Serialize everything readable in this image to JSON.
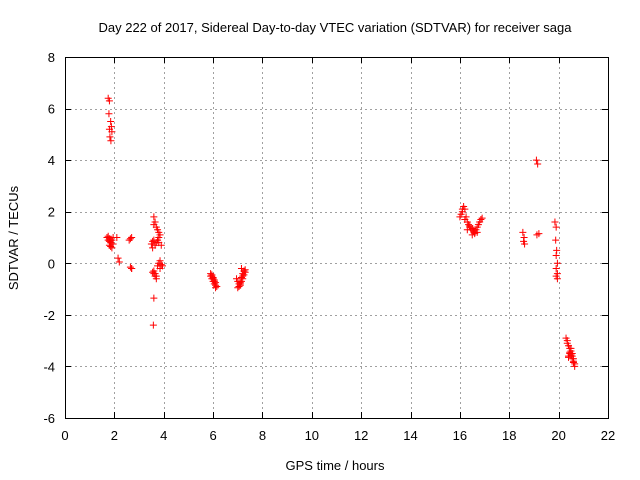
{
  "chart_data": {
    "type": "scatter",
    "title": "Day 222 of 2017, Sidereal Day-to-day VTEC variation (SDTVAR) for receiver saga",
    "xlabel": "GPS time / hours",
    "ylabel": "SDTVAR / TECUs",
    "xlim": [
      0,
      22
    ],
    "ylim": [
      -6,
      8
    ],
    "xticks": [
      0,
      2,
      4,
      6,
      8,
      10,
      12,
      14,
      16,
      18,
      20,
      22
    ],
    "yticks": [
      -6,
      -4,
      -2,
      0,
      2,
      4,
      6,
      8
    ],
    "grid": true,
    "marker": "plus",
    "color": "#ff0000",
    "series": [
      {
        "name": "SDTVAR",
        "x": [
          1.75,
          1.8,
          1.78,
          1.85,
          1.8,
          1.9,
          1.82,
          1.86,
          1.88,
          1.7,
          1.75,
          1.8,
          1.85,
          1.9,
          1.95,
          1.8,
          1.85,
          1.9,
          1.95,
          1.75,
          1.8,
          1.85,
          2.1,
          2.15,
          2.2,
          2.6,
          2.7,
          2.65,
          2.7,
          2.65,
          2.7,
          3.5,
          3.55,
          3.6,
          3.65,
          3.6,
          3.7,
          3.75,
          3.8,
          3.85,
          3.8,
          3.75,
          3.7,
          3.65,
          3.6,
          3.55,
          3.6,
          3.65,
          3.7,
          3.75,
          3.8,
          3.85,
          3.9,
          3.95,
          3.85,
          3.9,
          3.8,
          3.75,
          3.7,
          3.65,
          3.6,
          3.55,
          3.6,
          3.58,
          5.9,
          5.95,
          6.0,
          6.05,
          6.1,
          6.0,
          5.95,
          6.05,
          6.1,
          6.15,
          6.0,
          6.05,
          6.1,
          5.9,
          5.95,
          6.95,
          7.0,
          7.05,
          7.1,
          7.15,
          7.2,
          7.25,
          7.3,
          7.05,
          7.1,
          7.15,
          7.2,
          7.25,
          7.0,
          7.1,
          7.2,
          7.3,
          7.15,
          16.0,
          16.05,
          16.1,
          16.15,
          16.2,
          16.25,
          16.3,
          16.35,
          16.4,
          16.45,
          16.5,
          16.55,
          16.6,
          16.65,
          16.7,
          16.75,
          16.8,
          16.85,
          16.9,
          16.2,
          16.3,
          16.5,
          16.7,
          16.1,
          16.4,
          16.6,
          18.55,
          18.6,
          18.58,
          18.62,
          19.1,
          19.15,
          19.12,
          19.2,
          19.85,
          19.9,
          19.88,
          19.92,
          19.9,
          19.95,
          19.9,
          19.95,
          19.9,
          19.95,
          20.3,
          20.35,
          20.4,
          20.45,
          20.5,
          20.55,
          20.6,
          20.65,
          20.4,
          20.45,
          20.5,
          20.55,
          20.6,
          20.35,
          20.45,
          20.55,
          20.65,
          20.5,
          20.6,
          20.4
        ],
        "y": [
          6.4,
          6.3,
          5.8,
          5.5,
          5.2,
          5.1,
          4.9,
          4.75,
          5.3,
          1.0,
          0.9,
          0.85,
          0.8,
          0.9,
          1.0,
          0.7,
          0.65,
          0.6,
          0.75,
          1.05,
          0.95,
          0.9,
          1.0,
          0.2,
          0.05,
          0.9,
          1.0,
          0.95,
          -0.2,
          -0.15,
          -0.2,
          0.75,
          0.85,
          1.8,
          1.6,
          1.5,
          1.4,
          1.3,
          1.2,
          1.1,
          1.0,
          0.9,
          0.8,
          0.7,
          0.9,
          0.6,
          -0.3,
          -0.4,
          -0.5,
          -0.1,
          0.0,
          0.1,
          -0.05,
          -0.1,
          -0.2,
          0.7,
          0.8,
          0.9,
          -0.6,
          -0.5,
          -0.4,
          -0.35,
          -1.35,
          -2.4,
          -0.4,
          -0.5,
          -0.6,
          -0.7,
          -0.75,
          -0.55,
          -0.45,
          -0.65,
          -0.85,
          -0.9,
          -0.7,
          -0.8,
          -0.95,
          -0.5,
          -0.6,
          -0.6,
          -0.7,
          -0.8,
          -0.75,
          -0.7,
          -0.5,
          -0.45,
          -0.35,
          -0.9,
          -0.85,
          -0.55,
          -0.4,
          -0.3,
          -0.95,
          -0.8,
          -0.6,
          -0.25,
          -0.2,
          1.8,
          1.9,
          2.0,
          2.2,
          2.1,
          1.8,
          1.6,
          1.5,
          1.4,
          1.3,
          1.35,
          1.25,
          1.2,
          1.3,
          1.4,
          1.5,
          1.6,
          1.7,
          1.75,
          1.7,
          1.3,
          1.1,
          1.2,
          2.1,
          1.45,
          1.15,
          1.2,
          1.0,
          0.85,
          0.75,
          4.0,
          3.85,
          1.1,
          1.15,
          1.6,
          1.4,
          0.9,
          0.5,
          0.3,
          0.0,
          -0.2,
          -0.4,
          -0.5,
          -0.6,
          -2.9,
          -3.1,
          -3.2,
          -3.3,
          -3.4,
          -3.5,
          -3.7,
          -3.9,
          -3.6,
          -3.5,
          -3.55,
          -3.6,
          -3.8,
          -3.0,
          -3.45,
          -3.7,
          -4.0,
          -3.3,
          -3.85,
          -3.65
        ]
      }
    ]
  }
}
